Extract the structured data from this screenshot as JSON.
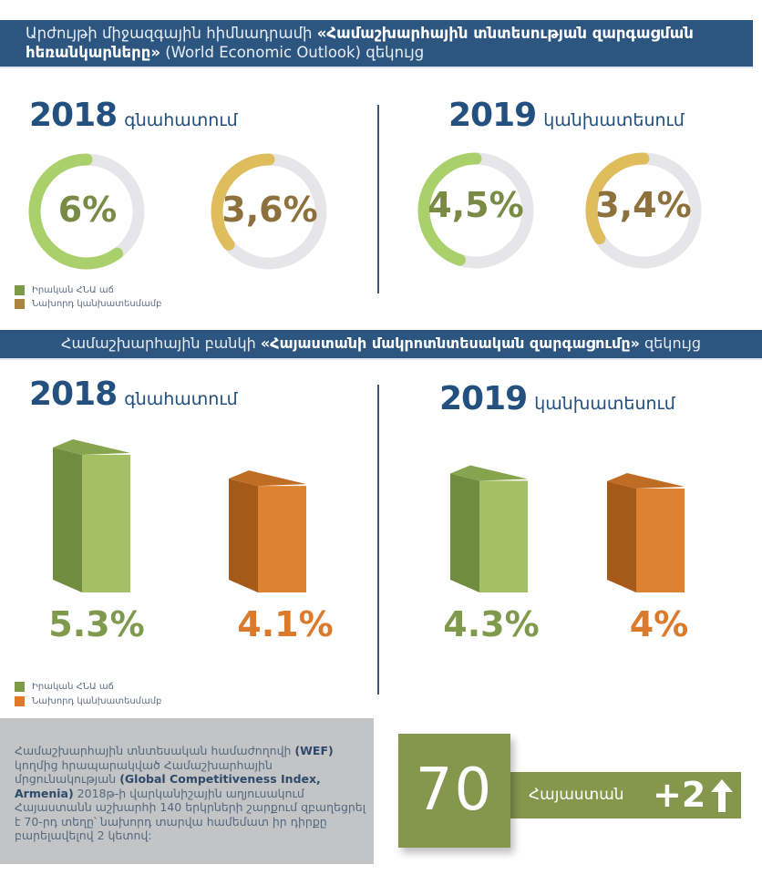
{
  "section1": {
    "header_plain": "Արժույթի միջազգային հիմնադրամի ",
    "header_bold": "«Համաշխարհային տնտեսության զարգացման հեռանկարները»",
    "header_tail": " (World Economic Outlook) զեկույց",
    "left_year": "2018",
    "left_subtitle": "գնահատում",
    "right_year": "2019",
    "right_subtitle": "կանխատեսում",
    "legend": [
      {
        "label": "Իրական ՀՆԱ աճ",
        "color": "#7d9a48"
      },
      {
        "label": "Նախորդ կանխատեսմամբ",
        "color": "#a98440"
      }
    ]
  },
  "section2": {
    "header_plain": "Համաշխարհային բանկի ",
    "header_bold": "«Հայաստանի մակրոտնտեսական զարգացումը»",
    "header_tail": " զեկույց",
    "left_year": "2018",
    "left_subtitle": "գնահատում",
    "right_year": "2019",
    "right_subtitle": "կանխատեսում",
    "legend": [
      {
        "label": "Իրական ՀՆԱ աճ",
        "color": "#7d9a48"
      },
      {
        "label": "Նախորդ կանխատեսմամբ",
        "color": "#e07a2a"
      }
    ]
  },
  "chart_data": [
    {
      "type": "pie",
      "title": "Արժույթի միջազգային հիմնադրամի զեկույց — 2018 գնահատում / 2019 կանխատեսում",
      "scale_max": 10,
      "series": [
        {
          "name": "Իրական ՀՆԱ աճ",
          "period": "2018 գնահատում",
          "value": 6.0,
          "label": "6%",
          "color": "#a9d06a",
          "text_color": "#7a8a45"
        },
        {
          "name": "Նախորդ կանխատեսմամբ",
          "period": "2018 գնահատում",
          "value": 3.6,
          "label": "3,6%",
          "color": "#dfbc5c",
          "text_color": "#8c713d"
        },
        {
          "name": "Իրական ՀՆԱ աճ",
          "period": "2019 կանխատեսում",
          "value": 4.5,
          "label": "4,5%",
          "color": "#a9d06a",
          "text_color": "#7a8a45"
        },
        {
          "name": "Նախորդ կանխատեսմամբ",
          "period": "2019 կանխատեսում",
          "value": 3.4,
          "label": "3,4%",
          "color": "#dfbc5c",
          "text_color": "#8c713d"
        }
      ],
      "track_color": "#e6e6e9"
    },
    {
      "type": "bar",
      "title": "Համաշխարհային բանկի զեկույց — 2018 գնահատում / 2019 կանխատեսում",
      "categories": [
        "2018 գնահատում",
        "2019 կանխատեսում"
      ],
      "series": [
        {
          "name": "Իրական ՀՆԱ աճ",
          "values": [
            5.3,
            4.3
          ],
          "labels": [
            "5.3%",
            "4.3%"
          ],
          "front": "#a3c064",
          "side": "#6f8c3f",
          "top": "#86a44d",
          "text_color": "#7f9a4c"
        },
        {
          "name": "Նախորդ կանխատեսմամբ",
          "values": [
            4.1,
            4.0
          ],
          "labels": [
            "4.1%",
            "4%"
          ],
          "front": "#dc8230",
          "side": "#a55a1a",
          "top": "#bf6d24",
          "text_color": "#dc7a2c"
        }
      ]
    }
  ],
  "wef": {
    "text_1": "Համաշխարհային տնտեսական համաժողովի ",
    "text_1_bold": "(WEF)",
    "text_2": " կողմից հրապարակված Համաշխարհային մրցունակության ",
    "text_2_bold": "(Global Competitiveness Index, Armenia)",
    "text_3": " 2018թ-ի վարկանիշային աղյուսակում Հայաստանն աշխարհի 140 երկրների շարքում զբաղեցրել է 70-րդ տեղը՝ նախորդ տարվա համեմատ իր դիրքը բարելավելով  2 կետով:",
    "rank": "70",
    "country": "Հայաստան",
    "change": "+2",
    "change_icon": "arrow-up-icon",
    "color": "#85964d"
  }
}
